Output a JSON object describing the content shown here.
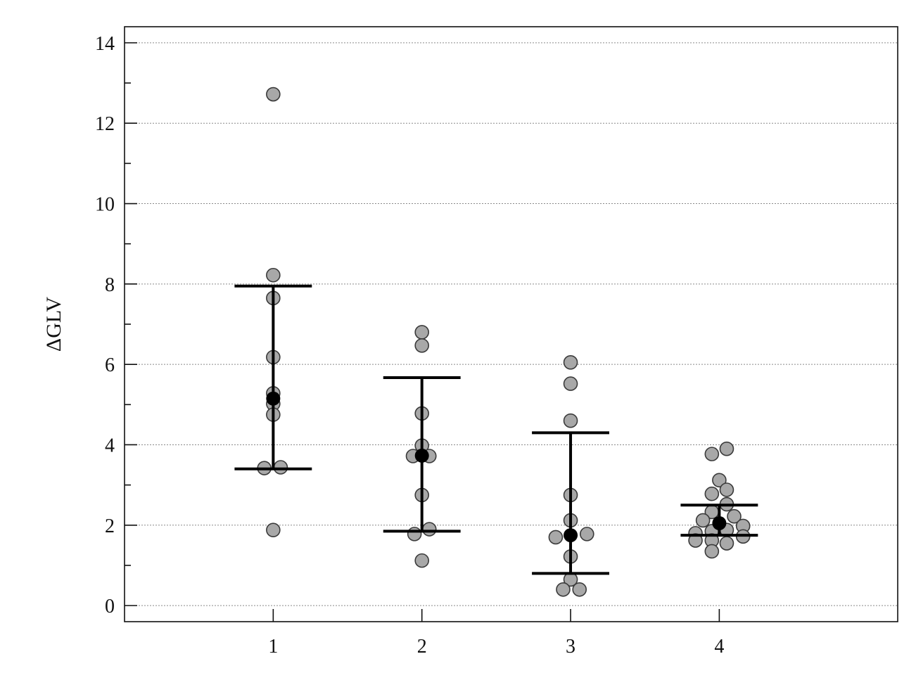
{
  "chart_data": {
    "type": "scatter",
    "title": "",
    "xlabel": "",
    "ylabel": "ΔGLV",
    "categories": [
      "1",
      "2",
      "3",
      "4"
    ],
    "yticks": [
      "0",
      "2",
      "4",
      "6",
      "8",
      "10",
      "12",
      "14"
    ],
    "xlim": [
      0,
      5.2
    ],
    "ylim": [
      -0.4,
      14.4
    ],
    "grid": true,
    "groups": [
      {
        "category": "1",
        "mean": 5.15,
        "upper": 7.95,
        "lower": 3.4,
        "points": [
          {
            "dx": 0,
            "y": 12.72
          },
          {
            "dx": 0,
            "y": 8.22
          },
          {
            "dx": 0,
            "y": 7.65
          },
          {
            "dx": 0,
            "y": 6.18
          },
          {
            "dx": 0,
            "y": 5.28
          },
          {
            "dx": 0,
            "y": 5.02
          },
          {
            "dx": 0,
            "y": 4.75
          },
          {
            "dx": -0.06,
            "y": 3.42
          },
          {
            "dx": 0.05,
            "y": 3.44
          },
          {
            "dx": 0,
            "y": 1.88
          }
        ]
      },
      {
        "category": "2",
        "mean": 3.73,
        "upper": 5.67,
        "lower": 1.85,
        "points": [
          {
            "dx": 0,
            "y": 6.8
          },
          {
            "dx": 0,
            "y": 6.47
          },
          {
            "dx": 0,
            "y": 4.78
          },
          {
            "dx": 0,
            "y": 3.98
          },
          {
            "dx": -0.06,
            "y": 3.72
          },
          {
            "dx": 0.05,
            "y": 3.72
          },
          {
            "dx": 0,
            "y": 2.75
          },
          {
            "dx": 0.05,
            "y": 1.9
          },
          {
            "dx": -0.05,
            "y": 1.78
          },
          {
            "dx": 0,
            "y": 1.12
          }
        ]
      },
      {
        "category": "3",
        "mean": 1.75,
        "upper": 4.3,
        "lower": 0.8,
        "points": [
          {
            "dx": 0,
            "y": 6.05
          },
          {
            "dx": 0,
            "y": 5.52
          },
          {
            "dx": 0,
            "y": 4.6
          },
          {
            "dx": 0,
            "y": 2.75
          },
          {
            "dx": 0,
            "y": 2.12
          },
          {
            "dx": -0.1,
            "y": 1.7
          },
          {
            "dx": 0.11,
            "y": 1.78
          },
          {
            "dx": 0,
            "y": 1.22
          },
          {
            "dx": 0,
            "y": 0.65
          },
          {
            "dx": -0.05,
            "y": 0.4
          },
          {
            "dx": 0.06,
            "y": 0.4
          }
        ]
      },
      {
        "category": "4",
        "mean": 2.05,
        "upper": 2.5,
        "lower": 1.75,
        "points": [
          {
            "dx": 0.05,
            "y": 3.9
          },
          {
            "dx": -0.05,
            "y": 3.77
          },
          {
            "dx": 0,
            "y": 3.12
          },
          {
            "dx": 0.05,
            "y": 2.88
          },
          {
            "dx": -0.05,
            "y": 2.78
          },
          {
            "dx": 0.05,
            "y": 2.52
          },
          {
            "dx": -0.05,
            "y": 2.33
          },
          {
            "dx": 0.1,
            "y": 2.22
          },
          {
            "dx": -0.11,
            "y": 2.12
          },
          {
            "dx": 0.16,
            "y": 1.98
          },
          {
            "dx": 0.05,
            "y": 1.88
          },
          {
            "dx": -0.05,
            "y": 1.85
          },
          {
            "dx": -0.16,
            "y": 1.8
          },
          {
            "dx": 0.16,
            "y": 1.72
          },
          {
            "dx": -0.16,
            "y": 1.62
          },
          {
            "dx": -0.05,
            "y": 1.62
          },
          {
            "dx": 0.05,
            "y": 1.55
          },
          {
            "dx": -0.05,
            "y": 1.35
          }
        ]
      }
    ]
  }
}
